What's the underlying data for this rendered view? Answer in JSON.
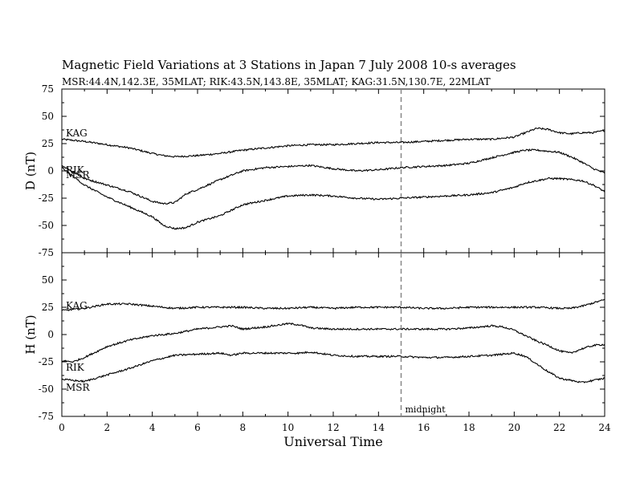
{
  "header": {
    "title": "Magnetic Field Variations at 3 Stations in Japan        7   July      2008      10-s averages",
    "subtitle": "MSR:44.4N,142.3E, 35MLAT;  RIK:43.5N,143.8E, 35MLAT;  KAG:31.5N,130.7E, 22MLAT"
  },
  "chart_data": [
    {
      "type": "line",
      "panel": "upper",
      "ylabel": "D (nT)",
      "ylim": [
        -75,
        75
      ],
      "yticks": [
        -75,
        -50,
        -25,
        0,
        25,
        50,
        75
      ],
      "xlim": [
        0,
        24
      ],
      "grid": false,
      "series": [
        {
          "name": "KAG",
          "x": [
            0,
            1,
            2,
            3,
            4,
            4.5,
            5,
            6,
            7,
            8,
            9,
            10,
            11,
            12,
            13,
            14,
            15,
            16,
            17,
            18,
            19,
            20,
            20.5,
            21,
            21.5,
            22,
            22.5,
            23,
            23.5,
            24
          ],
          "values": [
            29,
            27,
            24,
            21,
            16,
            14,
            13,
            14,
            16,
            19,
            21,
            23,
            24,
            24,
            25,
            26,
            26,
            27,
            28,
            29,
            29,
            31,
            35,
            39,
            38,
            35,
            34,
            35,
            35,
            37
          ]
        },
        {
          "name": "RIK",
          "x": [
            0,
            1,
            2,
            3,
            4,
            4.5,
            5,
            5.5,
            6,
            7,
            8,
            9,
            10,
            11,
            12,
            13,
            14,
            15,
            16,
            17,
            18,
            19,
            20,
            20.5,
            21,
            21.5,
            22,
            22.5,
            23,
            23.5,
            24
          ],
          "values": [
            5,
            -7,
            -13,
            -19,
            -28,
            -30,
            -29,
            -21,
            -17,
            -8,
            0,
            3,
            4,
            5,
            2,
            0,
            1,
            3,
            4,
            5,
            7,
            12,
            17,
            19,
            19,
            18,
            17,
            13,
            8,
            2,
            -2
          ]
        },
        {
          "name": "MSR",
          "x": [
            0,
            1,
            2,
            3,
            4,
            4.5,
            5,
            5.5,
            6,
            7,
            8,
            9,
            10,
            11,
            12,
            13,
            14,
            15,
            16,
            17,
            18,
            19,
            20,
            20.5,
            21,
            21.5,
            22,
            22.5,
            23,
            23.5,
            24
          ],
          "values": [
            3,
            -13,
            -24,
            -33,
            -42,
            -50,
            -53,
            -52,
            -47,
            -41,
            -31,
            -27,
            -23,
            -22,
            -23,
            -25,
            -26,
            -25,
            -24,
            -23,
            -22,
            -20,
            -15,
            -11,
            -9,
            -7,
            -7,
            -8,
            -9,
            -13,
            -19
          ]
        }
      ]
    },
    {
      "type": "line",
      "panel": "lower",
      "ylabel": "H (nT)",
      "ylim": [
        -75,
        75
      ],
      "yticks": [
        -75,
        -50,
        -25,
        0,
        25,
        50,
        75
      ],
      "xlabel": "Universal Time",
      "xlim": [
        0,
        24
      ],
      "xticks": [
        0,
        2,
        4,
        6,
        8,
        10,
        12,
        14,
        16,
        18,
        20,
        22,
        24
      ],
      "grid": false,
      "series": [
        {
          "name": "KAG",
          "x": [
            0,
            1,
            2,
            3,
            4,
            5,
            6,
            7,
            8,
            9,
            10,
            11,
            12,
            13,
            14,
            15,
            16,
            17,
            18,
            19,
            20,
            21,
            22,
            22.5,
            23,
            23.5,
            24
          ],
          "values": [
            22,
            24,
            28,
            28,
            26,
            24,
            25,
            25,
            25,
            24,
            24,
            25,
            24,
            25,
            25,
            25,
            24,
            24,
            25,
            25,
            25,
            25,
            24,
            24,
            26,
            29,
            32
          ]
        },
        {
          "name": "RIK",
          "x": [
            0,
            0.5,
            1,
            2,
            3,
            4,
            5,
            6,
            7,
            7.5,
            8,
            9,
            10,
            10.5,
            11,
            12,
            13,
            14,
            15,
            16,
            17,
            18,
            19,
            19.5,
            20,
            21,
            21.5,
            22,
            22.5,
            23,
            23.5,
            24
          ],
          "values": [
            -24,
            -25,
            -21,
            -11,
            -5,
            -1,
            1,
            5,
            7,
            8,
            5,
            7,
            10,
            9,
            6,
            5,
            5,
            5,
            5,
            5,
            5,
            6,
            8,
            7,
            4,
            -6,
            -10,
            -15,
            -17,
            -13,
            -10,
            -9
          ]
        },
        {
          "name": "MSR",
          "x": [
            0,
            0.5,
            1,
            2,
            3,
            4,
            5,
            6,
            7,
            7.5,
            8,
            9,
            10,
            10.5,
            11,
            12,
            13,
            14,
            15,
            16,
            17,
            18,
            19,
            20,
            20.5,
            21,
            21.5,
            22,
            22.5,
            23,
            23.5,
            24
          ],
          "values": [
            -41,
            -42,
            -43,
            -37,
            -31,
            -24,
            -19,
            -18,
            -17,
            -19,
            -17,
            -17,
            -17,
            -17,
            -16,
            -19,
            -20,
            -20,
            -20,
            -21,
            -21,
            -20,
            -19,
            -17,
            -20,
            -27,
            -34,
            -40,
            -42,
            -44,
            -42,
            -40
          ]
        }
      ]
    }
  ],
  "annotations": {
    "midnight_label": "midnight",
    "midnight_ut": 15
  }
}
